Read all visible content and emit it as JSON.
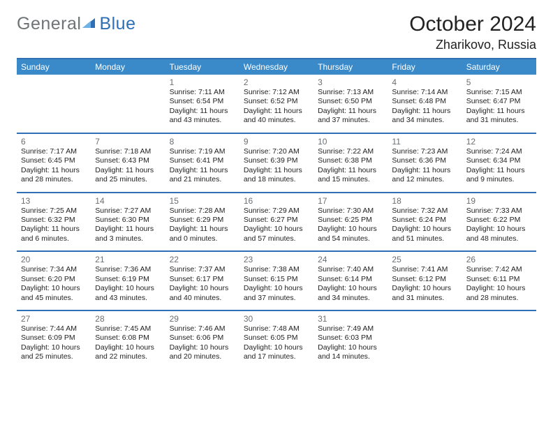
{
  "colors": {
    "brand_blue": "#2f6fb6",
    "header_blue": "#3a8ac9",
    "logo_gray": "#6f7476",
    "text": "#222222",
    "num_gray": "#6b6f72",
    "bg": "#ffffff"
  },
  "logo": {
    "word1": "General",
    "word2": "Blue"
  },
  "header": {
    "title": "October 2024",
    "subtitle": "Zharikovo, Russia"
  },
  "day_names": [
    "Sunday",
    "Monday",
    "Tuesday",
    "Wednesday",
    "Thursday",
    "Friday",
    "Saturday"
  ],
  "layout": {
    "first_weekday_index": 2,
    "days_in_month": 31
  },
  "typography": {
    "title_pt": 30,
    "subtitle_pt": 18,
    "header_pt": 12,
    "daynum_pt": 12,
    "body_pt": 10.5
  },
  "days": [
    {
      "d": 1,
      "sunrise": "7:11 AM",
      "sunset": "6:54 PM",
      "daylight": "11 hours and 43 minutes."
    },
    {
      "d": 2,
      "sunrise": "7:12 AM",
      "sunset": "6:52 PM",
      "daylight": "11 hours and 40 minutes."
    },
    {
      "d": 3,
      "sunrise": "7:13 AM",
      "sunset": "6:50 PM",
      "daylight": "11 hours and 37 minutes."
    },
    {
      "d": 4,
      "sunrise": "7:14 AM",
      "sunset": "6:48 PM",
      "daylight": "11 hours and 34 minutes."
    },
    {
      "d": 5,
      "sunrise": "7:15 AM",
      "sunset": "6:47 PM",
      "daylight": "11 hours and 31 minutes."
    },
    {
      "d": 6,
      "sunrise": "7:17 AM",
      "sunset": "6:45 PM",
      "daylight": "11 hours and 28 minutes."
    },
    {
      "d": 7,
      "sunrise": "7:18 AM",
      "sunset": "6:43 PM",
      "daylight": "11 hours and 25 minutes."
    },
    {
      "d": 8,
      "sunrise": "7:19 AM",
      "sunset": "6:41 PM",
      "daylight": "11 hours and 21 minutes."
    },
    {
      "d": 9,
      "sunrise": "7:20 AM",
      "sunset": "6:39 PM",
      "daylight": "11 hours and 18 minutes."
    },
    {
      "d": 10,
      "sunrise": "7:22 AM",
      "sunset": "6:38 PM",
      "daylight": "11 hours and 15 minutes."
    },
    {
      "d": 11,
      "sunrise": "7:23 AM",
      "sunset": "6:36 PM",
      "daylight": "11 hours and 12 minutes."
    },
    {
      "d": 12,
      "sunrise": "7:24 AM",
      "sunset": "6:34 PM",
      "daylight": "11 hours and 9 minutes."
    },
    {
      "d": 13,
      "sunrise": "7:25 AM",
      "sunset": "6:32 PM",
      "daylight": "11 hours and 6 minutes."
    },
    {
      "d": 14,
      "sunrise": "7:27 AM",
      "sunset": "6:30 PM",
      "daylight": "11 hours and 3 minutes."
    },
    {
      "d": 15,
      "sunrise": "7:28 AM",
      "sunset": "6:29 PM",
      "daylight": "11 hours and 0 minutes."
    },
    {
      "d": 16,
      "sunrise": "7:29 AM",
      "sunset": "6:27 PM",
      "daylight": "10 hours and 57 minutes."
    },
    {
      "d": 17,
      "sunrise": "7:30 AM",
      "sunset": "6:25 PM",
      "daylight": "10 hours and 54 minutes."
    },
    {
      "d": 18,
      "sunrise": "7:32 AM",
      "sunset": "6:24 PM",
      "daylight": "10 hours and 51 minutes."
    },
    {
      "d": 19,
      "sunrise": "7:33 AM",
      "sunset": "6:22 PM",
      "daylight": "10 hours and 48 minutes."
    },
    {
      "d": 20,
      "sunrise": "7:34 AM",
      "sunset": "6:20 PM",
      "daylight": "10 hours and 45 minutes."
    },
    {
      "d": 21,
      "sunrise": "7:36 AM",
      "sunset": "6:19 PM",
      "daylight": "10 hours and 43 minutes."
    },
    {
      "d": 22,
      "sunrise": "7:37 AM",
      "sunset": "6:17 PM",
      "daylight": "10 hours and 40 minutes."
    },
    {
      "d": 23,
      "sunrise": "7:38 AM",
      "sunset": "6:15 PM",
      "daylight": "10 hours and 37 minutes."
    },
    {
      "d": 24,
      "sunrise": "7:40 AM",
      "sunset": "6:14 PM",
      "daylight": "10 hours and 34 minutes."
    },
    {
      "d": 25,
      "sunrise": "7:41 AM",
      "sunset": "6:12 PM",
      "daylight": "10 hours and 31 minutes."
    },
    {
      "d": 26,
      "sunrise": "7:42 AM",
      "sunset": "6:11 PM",
      "daylight": "10 hours and 28 minutes."
    },
    {
      "d": 27,
      "sunrise": "7:44 AM",
      "sunset": "6:09 PM",
      "daylight": "10 hours and 25 minutes."
    },
    {
      "d": 28,
      "sunrise": "7:45 AM",
      "sunset": "6:08 PM",
      "daylight": "10 hours and 22 minutes."
    },
    {
      "d": 29,
      "sunrise": "7:46 AM",
      "sunset": "6:06 PM",
      "daylight": "10 hours and 20 minutes."
    },
    {
      "d": 30,
      "sunrise": "7:48 AM",
      "sunset": "6:05 PM",
      "daylight": "10 hours and 17 minutes."
    },
    {
      "d": 31,
      "sunrise": "7:49 AM",
      "sunset": "6:03 PM",
      "daylight": "10 hours and 14 minutes."
    }
  ],
  "labels": {
    "sunrise": "Sunrise:",
    "sunset": "Sunset:",
    "daylight": "Daylight:"
  }
}
